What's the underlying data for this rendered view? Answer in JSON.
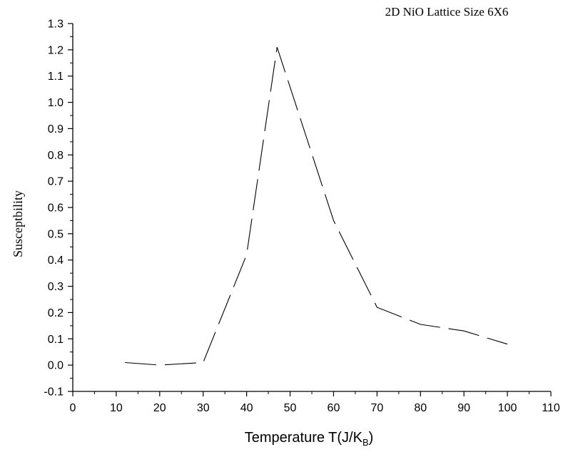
{
  "chart_data": {
    "type": "line",
    "title": "2D NiO Lattice Size 6X6",
    "xlabel": {
      "main": "Temperature T(J/K",
      "sub": "B",
      "close": ")"
    },
    "ylabel": "Susceptbility",
    "xlim": [
      0,
      110
    ],
    "ylim": [
      -0.1,
      1.3
    ],
    "x_ticks": [
      0,
      10,
      20,
      30,
      40,
      50,
      60,
      70,
      80,
      90,
      100,
      110
    ],
    "y_ticks": [
      -0.1,
      0.0,
      0.1,
      0.2,
      0.3,
      0.4,
      0.5,
      0.6,
      0.7,
      0.8,
      0.9,
      1.0,
      1.1,
      1.2,
      1.3
    ],
    "y_tick_labels": [
      "-0.1",
      "0.0",
      "0.1",
      "0.2",
      "0.3",
      "0.4",
      "0.5",
      "0.6",
      "0.7",
      "0.8",
      "0.9",
      "1.0",
      "1.1",
      "1.2",
      "1.3"
    ],
    "grid": false,
    "line_style": "dashed",
    "series": [
      {
        "x": [
          12,
          20,
          30,
          40,
          47,
          60,
          70,
          80,
          90,
          100
        ],
        "y": [
          0.01,
          0.0,
          0.01,
          0.42,
          1.21,
          0.55,
          0.22,
          0.155,
          0.13,
          0.08
        ]
      }
    ]
  }
}
